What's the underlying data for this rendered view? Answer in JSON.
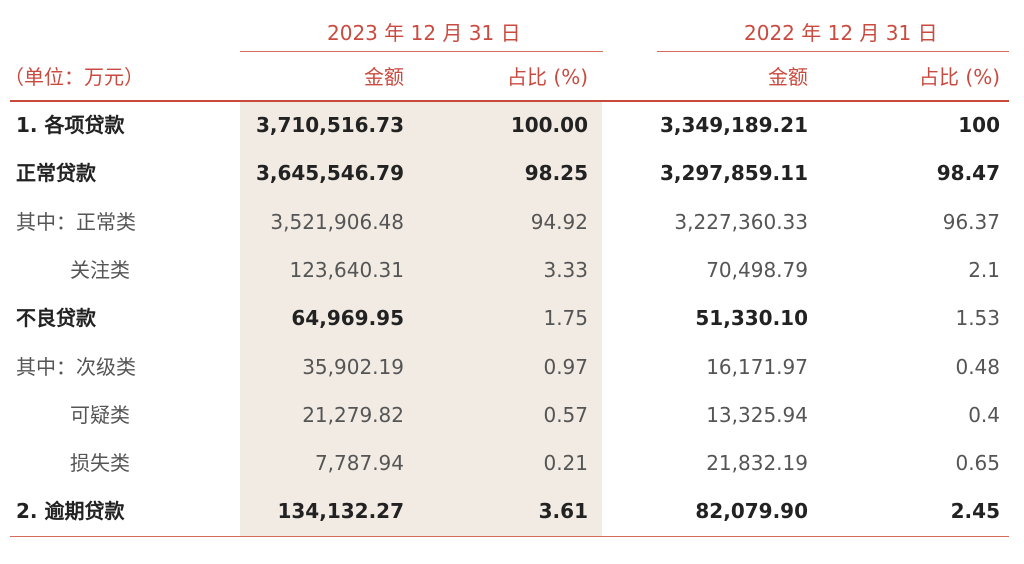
{
  "header": {
    "year_2023": "2023 年 12 月 31 日",
    "year_2022": "2022 年 12 月 31 日",
    "unit": "（单位：万元）",
    "amount_2023": "金额",
    "pct_2023": "占比 (%)",
    "amount_2022": "金额",
    "pct_2022": "占比 (%)"
  },
  "rows": [
    {
      "label": "1. 各项贷款",
      "a2023": "3,710,516.73",
      "p2023": "100.00",
      "a2022": "3,349,189.21",
      "p2022": "100",
      "style": "bold-all"
    },
    {
      "label": "正常贷款",
      "a2023": "3,645,546.79",
      "p2023": "98.25",
      "a2022": "3,297,859.11",
      "p2022": "98.47",
      "style": "bold-all"
    },
    {
      "label": "其中：正常类",
      "a2023": "3,521,906.48",
      "p2023": "94.92",
      "a2022": "3,227,360.33",
      "p2022": "96.37",
      "style": "normal"
    },
    {
      "label": "关注类",
      "a2023": "123,640.31",
      "p2023": "3.33",
      "a2022": "70,498.79",
      "p2022": "2.1",
      "style": "normal-indent"
    },
    {
      "label": "不良贷款",
      "a2023": "64,969.95",
      "p2023": "1.75",
      "a2022": "51,330.10",
      "p2022": "1.53",
      "style": "bold-amount"
    },
    {
      "label": "其中：次级类",
      "a2023": "35,902.19",
      "p2023": "0.97",
      "a2022": "16,171.97",
      "p2022": "0.48",
      "style": "normal"
    },
    {
      "label": "可疑类",
      "a2023": "21,279.82",
      "p2023": "0.57",
      "a2022": "13,325.94",
      "p2022": "0.4",
      "style": "normal-indent"
    },
    {
      "label": "损失类",
      "a2023": "7,787.94",
      "p2023": "0.21",
      "a2022": "21,832.19",
      "p2022": "0.65",
      "style": "normal-indent"
    },
    {
      "label": "2. 逾期贷款",
      "a2023": "134,132.27",
      "p2023": "3.61",
      "a2022": "82,079.90",
      "p2022": "2.45",
      "style": "bold-all"
    }
  ]
}
